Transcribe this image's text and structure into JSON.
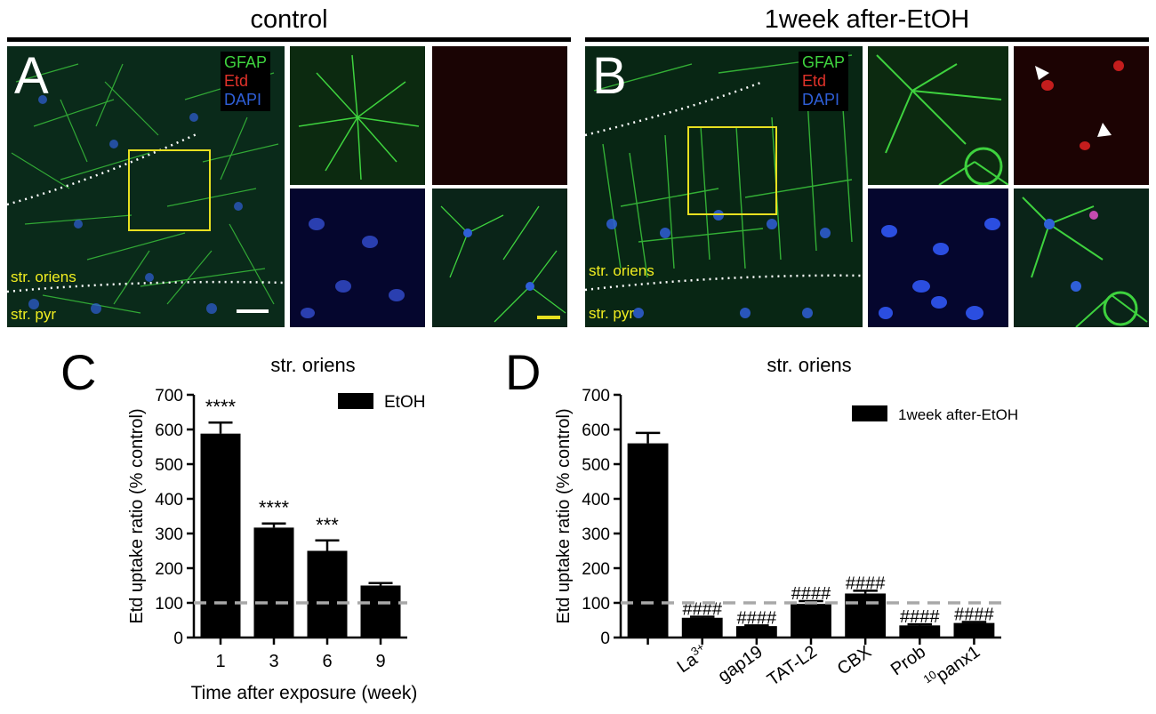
{
  "figure": {
    "panel_a": {
      "header": "control",
      "letter": "A",
      "legend": [
        "GFAP",
        "Etd",
        "DAPI"
      ],
      "region_top": "str. oriens",
      "region_bottom": "str. pyr"
    },
    "panel_b": {
      "header": "1week after-EtOH",
      "letter": "B",
      "legend": [
        "GFAP",
        "Etd",
        "DAPI"
      ],
      "region_top": "str. oriens",
      "region_bottom": "str. pyr"
    }
  },
  "colors": {
    "gfap": "#3ed23e",
    "etd": "#e0322a",
    "dapi": "#2f5fd8",
    "roi_box": "#e8e020",
    "region_label": "#f2ee20",
    "bar": "#000000",
    "baseline": "#a8a8a8"
  },
  "chart_data": [
    {
      "panel": "C",
      "type": "bar",
      "title": "str. oriens",
      "xlabel": "Time after exposure (week)",
      "ylabel": "Etd uptake ratio (% control)",
      "ylim": [
        0,
        700
      ],
      "yticks": [
        0,
        100,
        200,
        300,
        400,
        500,
        600,
        700
      ],
      "reference_line": 100,
      "categories": [
        "1",
        "3",
        "6",
        "9"
      ],
      "series": [
        {
          "name": "EtOH",
          "values": [
            588,
            317,
            250,
            150
          ],
          "errors": [
            32,
            12,
            30,
            7
          ],
          "annotations": [
            "****",
            "****",
            "***",
            ""
          ]
        }
      ],
      "legend_position": "top-right"
    },
    {
      "panel": "D",
      "type": "bar",
      "title": "str. oriens",
      "xlabel": "",
      "ylabel": "Etd uptake ratio (% control)",
      "ylim": [
        0,
        700
      ],
      "yticks": [
        0,
        100,
        200,
        300,
        400,
        500,
        600,
        700
      ],
      "reference_line": 100,
      "categories": [
        "",
        "La3+",
        "gap19",
        "TAT-L2",
        "CBX",
        "Prob",
        "10panx1"
      ],
      "category_display": [
        {
          "base": "",
          "sup": "",
          "pre": ""
        },
        {
          "base": "La",
          "sup": "3+",
          "pre": ""
        },
        {
          "base": "gap19",
          "sup": "",
          "pre": ""
        },
        {
          "base": "TAT-L2",
          "sup": "",
          "pre": ""
        },
        {
          "base": "CBX",
          "sup": "",
          "pre": ""
        },
        {
          "base": "Prob",
          "sup": "",
          "pre": ""
        },
        {
          "base": "panx1",
          "sup": "",
          "pre": "10"
        }
      ],
      "series": [
        {
          "name": "1week after-EtOH",
          "values": [
            560,
            57,
            33,
            97,
            127,
            35,
            42
          ],
          "errors": [
            30,
            3,
            2,
            8,
            8,
            3,
            3
          ],
          "annotations": [
            "",
            "####",
            "####",
            "####",
            "####",
            "####",
            "####"
          ]
        }
      ],
      "legend_position": "top-right"
    }
  ]
}
